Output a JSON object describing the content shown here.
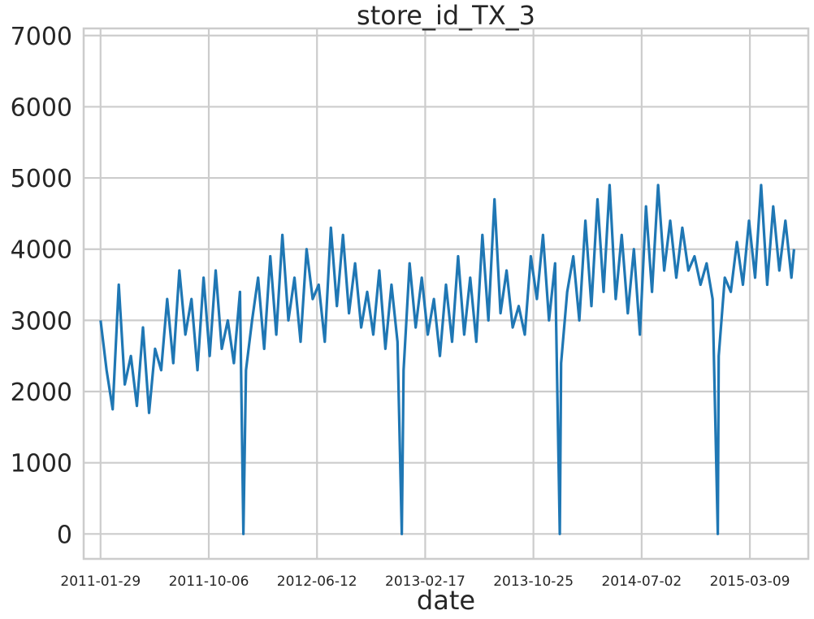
{
  "chart_data": {
    "type": "line",
    "title": "store_id_TX_3",
    "xlabel": "date",
    "ylabel": "",
    "x_ticks": [
      "2011-01-29",
      "2011-10-06",
      "2012-06-12",
      "2013-02-17",
      "2013-10-25",
      "2014-07-02",
      "2015-03-09"
    ],
    "y_ticks": [
      0,
      1000,
      2000,
      3000,
      4000,
      5000,
      6000,
      7000
    ],
    "xlim": [
      "2010-12-21",
      "2015-07-22"
    ],
    "ylim": [
      -350,
      7100
    ],
    "grid": true,
    "legend": "none",
    "color": "#1f77b4",
    "x_start": "2011-01-29",
    "x_end": "2015-06-19",
    "series": [
      {
        "x": [
          "2011-01-29",
          "2011-02-12",
          "2011-02-26",
          "2011-03-12",
          "2011-03-26",
          "2011-04-09",
          "2011-04-23",
          "2011-05-07",
          "2011-05-21",
          "2011-06-04",
          "2011-06-18",
          "2011-07-02",
          "2011-07-16",
          "2011-07-30",
          "2011-08-13",
          "2011-08-27",
          "2011-09-10",
          "2011-09-24",
          "2011-10-08",
          "2011-10-22",
          "2011-11-05",
          "2011-11-19",
          "2011-12-03",
          "2011-12-17",
          "2011-12-25",
          "2011-12-31",
          "2012-01-14",
          "2012-01-28",
          "2012-02-11",
          "2012-02-25",
          "2012-03-10",
          "2012-03-24",
          "2012-04-07",
          "2012-04-21",
          "2012-05-05",
          "2012-05-19",
          "2012-06-02",
          "2012-06-16",
          "2012-06-30",
          "2012-07-14",
          "2012-07-28",
          "2012-08-11",
          "2012-08-25",
          "2012-09-08",
          "2012-09-22",
          "2012-10-06",
          "2012-10-20",
          "2012-11-03",
          "2012-11-17",
          "2012-12-01",
          "2012-12-15",
          "2012-12-25",
          "2012-12-29",
          "2013-01-12",
          "2013-01-26",
          "2013-02-09",
          "2013-02-23",
          "2013-03-09",
          "2013-03-23",
          "2013-04-06",
          "2013-04-20",
          "2013-05-04",
          "2013-05-18",
          "2013-06-01",
          "2013-06-15",
          "2013-06-29",
          "2013-07-13",
          "2013-07-27",
          "2013-08-10",
          "2013-08-24",
          "2013-09-07",
          "2013-09-21",
          "2013-10-05",
          "2013-10-19",
          "2013-11-02",
          "2013-11-16",
          "2013-11-30",
          "2013-12-14",
          "2013-12-25",
          "2013-12-28",
          "2014-01-11",
          "2014-01-25",
          "2014-02-08",
          "2014-02-22",
          "2014-03-08",
          "2014-03-22",
          "2014-04-05",
          "2014-04-19",
          "2014-05-03",
          "2014-05-17",
          "2014-05-31",
          "2014-06-14",
          "2014-06-28",
          "2014-07-12",
          "2014-07-26",
          "2014-08-09",
          "2014-08-23",
          "2014-09-06",
          "2014-09-20",
          "2014-10-04",
          "2014-10-18",
          "2014-11-01",
          "2014-11-15",
          "2014-11-29",
          "2014-12-13",
          "2014-12-25",
          "2014-12-27",
          "2015-01-10",
          "2015-01-24",
          "2015-02-07",
          "2015-02-21",
          "2015-03-07",
          "2015-03-21",
          "2015-04-04",
          "2015-04-18",
          "2015-05-02",
          "2015-05-16",
          "2015-05-30",
          "2015-06-13",
          "2015-06-19"
        ],
        "y": [
          3000,
          2300,
          1750,
          3500,
          2100,
          2500,
          1800,
          2900,
          1700,
          2600,
          2300,
          3300,
          2400,
          3700,
          2800,
          3300,
          2300,
          3600,
          2500,
          3700,
          2600,
          3000,
          2400,
          3400,
          0,
          2300,
          3000,
          3600,
          2600,
          3900,
          2800,
          4200,
          3000,
          3600,
          2700,
          4000,
          3300,
          3500,
          2700,
          4300,
          3200,
          4200,
          3100,
          3800,
          2900,
          3400,
          2800,
          3700,
          2600,
          3500,
          2700,
          0,
          2300,
          3800,
          2900,
          3600,
          2800,
          3300,
          2500,
          3500,
          2700,
          3900,
          2800,
          3600,
          2700,
          4200,
          3000,
          4700,
          3100,
          3700,
          2900,
          3200,
          2800,
          3900,
          3300,
          4200,
          3000,
          3800,
          0,
          2400,
          3400,
          3900,
          3000,
          4400,
          3200,
          4700,
          3400,
          4900,
          3300,
          4200,
          3100,
          4000,
          2800,
          4600,
          3400,
          4900,
          3700,
          4400,
          3600,
          4300,
          3700,
          3900,
          3500,
          3800,
          3300,
          0,
          2500,
          3600,
          3400,
          4100,
          3500,
          4400,
          3600,
          4900,
          3500,
          4600,
          3700,
          4400,
          3600,
          4000
        ]
      }
    ]
  }
}
